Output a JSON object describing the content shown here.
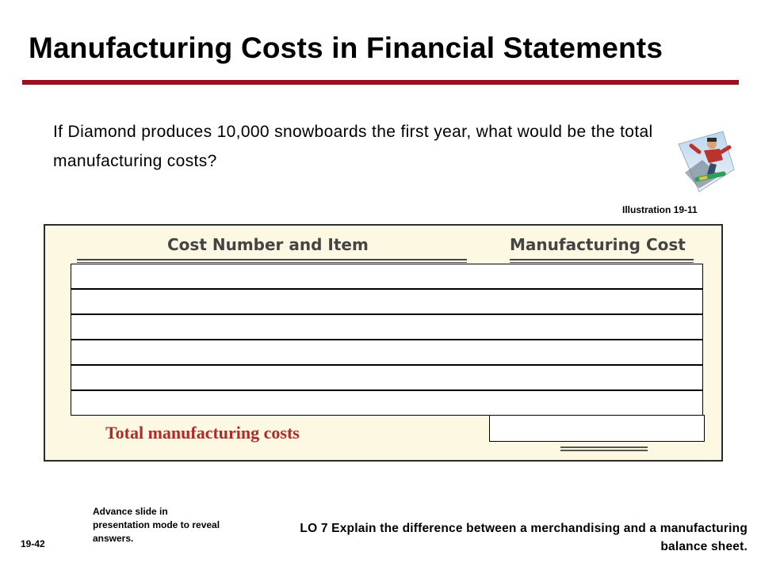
{
  "slide": {
    "title": "Manufacturing Costs in Financial Statements",
    "question": "If Diamond produces 10,000 snowboards the first year, what would be the total manufacturing costs?",
    "illustration_label": "Illustration 19-11",
    "icon": "snowboarder-icon",
    "accent_color": "#a00f1e"
  },
  "table": {
    "col_item_header": "Cost Number and Item",
    "col_cost_header": "Manufacturing Cost",
    "answer_rows": [
      "",
      "",
      "",
      "",
      "",
      ""
    ],
    "total_label": "Total manufacturing costs",
    "total_value": ""
  },
  "footer": {
    "slide_number": "19-42",
    "advance_note": "Advance slide in presentation mode to reveal answers.",
    "learning_objective": "LO 7  Explain the difference between a merchandising and a manufacturing balance sheet."
  }
}
